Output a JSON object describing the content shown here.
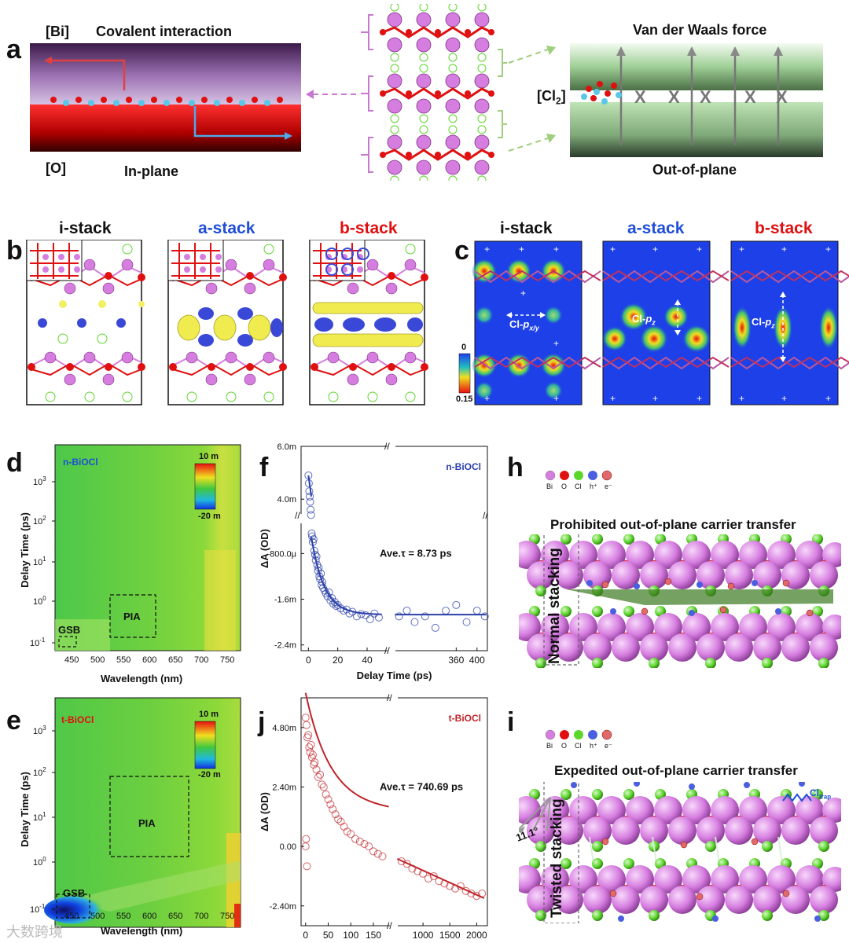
{
  "panel_labels": {
    "a": "a",
    "b": "b",
    "c": "c",
    "d": "d",
    "e": "e",
    "f": "f",
    "h": "h",
    "i": "i",
    "j": "j"
  },
  "panel_a": {
    "bi_label": "[Bi]",
    "covalent": "Covalent interaction",
    "o_label": "[O]",
    "in_plane": "In-plane",
    "vdw": "Van der Waals force",
    "cl2_label": "[Cl",
    "cl2_sub": "2",
    "cl2_close": "]",
    "out_of_plane": "Out-of-plane"
  },
  "panel_b": {
    "titles": [
      "i-stack",
      "a-stack",
      "b-stack"
    ]
  },
  "panel_c": {
    "titles": [
      "i-stack",
      "a-stack",
      "b-stack"
    ],
    "scale_top": "0",
    "scale_bottom": "0.15",
    "orbital_labels": [
      {
        "prefix": "Cl-",
        "italic": "p",
        "sub": "x/y"
      },
      {
        "prefix": "Cl-",
        "italic": "p",
        "sub": "z"
      },
      {
        "prefix": "Cl-",
        "italic": "p",
        "sub": "z"
      }
    ]
  },
  "panel_d": {
    "sample": "n-BiOCl",
    "ylabel": "Delay Time (ps)",
    "xlabel": "Wavelength (nm)",
    "xticks": [
      "450",
      "500",
      "550",
      "600",
      "650",
      "700",
      "750"
    ],
    "cbar_top": "10 m",
    "cbar_bottom": "-20 m",
    "gsb": "GSB",
    "pia": "PIA"
  },
  "panel_e": {
    "sample": "t-BiOCl",
    "ylabel": "Delay Time (ps)",
    "xlabel": "Wavelength (nm)",
    "xticks": [
      "450",
      "500",
      "550",
      "600",
      "650",
      "700",
      "750"
    ],
    "cbar_top": "10 m",
    "cbar_bottom": "-20 m",
    "gsb": "GSB",
    "pia": "PIA"
  },
  "panel_h": {
    "legend": [
      "Bi",
      "O",
      "Cl",
      "h⁺",
      "e⁻"
    ],
    "title": "Prohibited out-of-plane carrier transfer",
    "side": "Normal stacking"
  },
  "panel_i": {
    "legend": [
      "Bi",
      "O",
      "Cl",
      "h⁺",
      "e⁻"
    ],
    "title": "Expedited out-of-plane carrier transfer",
    "side": "Twisted stacking",
    "angle": "11.1°",
    "trap": "Cl",
    "trap_sub": "trap"
  },
  "colors": {
    "bi": "#d67ee0",
    "o": "#e01010",
    "cl": "#5dd62c",
    "hole": "#4a5ee0",
    "electron": "#e05050",
    "blue_fit": "#2a3fa8",
    "red_fit": "#c0242a",
    "c_bg": "#1e40e8"
  },
  "watermark": "大数跨境",
  "chart_data": [
    {
      "type": "scatter",
      "panel": "f",
      "title": "n-BiOCl",
      "annotation": "Ave.τ = 8.73 ps",
      "xlabel": "Delay Time (ps)",
      "ylabel": "ΔA (OD)",
      "segment1_xlim": [
        -5,
        55
      ],
      "segment2_xlim": [
        240,
        420
      ],
      "xticks": [
        "0",
        "20",
        "40",
        "360",
        "400"
      ],
      "xtick_values": [
        0,
        20,
        40,
        360,
        400
      ],
      "yticks_upper": [
        "6.0m",
        "4.0m"
      ],
      "yticks_lower": [
        "-800.0μ",
        "-1.6m",
        "-2.4m"
      ],
      "upper_ylim": [
        0.0035,
        0.006
      ],
      "lower_ylim": [
        -0.0025,
        -0.0003
      ],
      "fit": {
        "offset": -0.00187,
        "amplitude": 0.0068,
        "tau": 8.73,
        "peak": 0.0049
      },
      "points_early": [
        [
          0,
          0.0049
        ],
        [
          0.3,
          0.0046
        ],
        [
          0.6,
          0.0043
        ],
        [
          0.9,
          0.0041
        ],
        [
          1.2,
          0.0039
        ],
        [
          1.5,
          0.0036
        ],
        [
          1.8,
          0.0034
        ],
        [
          2.2,
          -0.00045
        ],
        [
          2.5,
          -0.0005
        ],
        [
          3,
          -0.0006
        ],
        [
          3.5,
          -0.00055
        ],
        [
          4,
          -0.00075
        ],
        [
          4.5,
          -0.00082
        ],
        [
          5,
          -0.00092
        ],
        [
          5.5,
          -0.00085
        ],
        [
          6,
          -0.001
        ],
        [
          6.5,
          -0.0011
        ],
        [
          7,
          -0.00105
        ],
        [
          7.5,
          -0.0012
        ],
        [
          8,
          -0.00125
        ],
        [
          8.5,
          -0.00115
        ],
        [
          9,
          -0.00135
        ],
        [
          9.5,
          -0.0013
        ],
        [
          10,
          -0.0014
        ],
        [
          11,
          -0.00145
        ],
        [
          12,
          -0.0015
        ],
        [
          13,
          -0.00155
        ],
        [
          14,
          -0.00148
        ],
        [
          15,
          -0.00162
        ],
        [
          16,
          -0.00158
        ],
        [
          17,
          -0.00168
        ],
        [
          18,
          -0.00165
        ],
        [
          19,
          -0.00172
        ],
        [
          20,
          -0.0017
        ],
        [
          22,
          -0.00176
        ],
        [
          24,
          -0.0018
        ],
        [
          26,
          -0.00178
        ],
        [
          28,
          -0.00185
        ],
        [
          30,
          -0.00182
        ],
        [
          33,
          -0.0019
        ],
        [
          36,
          -0.00186
        ],
        [
          39,
          -0.00188
        ],
        [
          42,
          -0.00195
        ],
        [
          45,
          -0.00185
        ],
        [
          48,
          -0.00192
        ]
      ],
      "points_late": [
        [
          250,
          -0.0019
        ],
        [
          265,
          -0.0018
        ],
        [
          280,
          -0.002
        ],
        [
          300,
          -0.0019
        ],
        [
          320,
          -0.0021
        ],
        [
          340,
          -0.0018
        ],
        [
          360,
          -0.0017
        ],
        [
          380,
          -0.002
        ],
        [
          400,
          -0.0018
        ],
        [
          415,
          -0.0019
        ]
      ]
    },
    {
      "type": "scatter",
      "panel": "j",
      "title": "t-BiOCl",
      "annotation": "Ave.τ = 740.69 ps",
      "xlabel": "Delay Time (ps)",
      "ylabel": "ΔA (OD)",
      "segment1_xlim": [
        -10,
        190
      ],
      "segment2_xlim": [
        500,
        2200
      ],
      "xticks": [
        "0",
        "50",
        "100",
        "150",
        "1000",
        "1500",
        "2000"
      ],
      "xtick_values": [
        0,
        50,
        100,
        150,
        1000,
        1500,
        2000
      ],
      "yticks": [
        "4.80m",
        "2.40m",
        "0.00",
        "-2.40m"
      ],
      "ytick_values": [
        0.0048,
        0.0024,
        0,
        -0.0024
      ],
      "ylim": [
        -0.0032,
        0.006
      ],
      "fit": {
        "a1": 0.0046,
        "tau1": 55,
        "a2": 0.0016,
        "tau2": 1800,
        "offset": -0.0033
      },
      "points_early": [
        [
          0,
          0.0052
        ],
        [
          2,
          0.0049
        ],
        [
          4,
          0.0044
        ],
        [
          6,
          0.0045
        ],
        [
          8,
          0.004
        ],
        [
          10,
          0.0038
        ],
        [
          12,
          0.0041
        ],
        [
          14,
          0.0036
        ],
        [
          16,
          0.0037
        ],
        [
          18,
          0.0033
        ],
        [
          20,
          0.0034
        ],
        [
          24,
          0.0031
        ],
        [
          28,
          0.0028
        ],
        [
          32,
          0.0029
        ],
        [
          36,
          0.0025
        ],
        [
          40,
          0.0024
        ],
        [
          45,
          0.0021
        ],
        [
          50,
          0.0019
        ],
        [
          55,
          0.0017
        ],
        [
          60,
          0.0015
        ],
        [
          66,
          0.0013
        ],
        [
          72,
          0.0011
        ],
        [
          78,
          0.001
        ],
        [
          85,
          0.0008
        ],
        [
          92,
          0.0006
        ],
        [
          100,
          0.0005
        ],
        [
          110,
          0.0003
        ],
        [
          120,
          0.0002
        ],
        [
          130,
          0.0001
        ],
        [
          140,
          0.0
        ],
        [
          150,
          -0.0002
        ],
        [
          160,
          -0.0003
        ],
        [
          170,
          -0.0004
        ],
        [
          0,
          0.0
        ],
        [
          1,
          0.0003
        ],
        [
          3,
          -0.0008
        ]
      ],
      "points_late": [
        [
          600,
          -0.0006
        ],
        [
          700,
          -0.0007
        ],
        [
          800,
          -0.0009
        ],
        [
          900,
          -0.001
        ],
        [
          1000,
          -0.0011
        ],
        [
          1100,
          -0.0013
        ],
        [
          1200,
          -0.0012
        ],
        [
          1300,
          -0.0014
        ],
        [
          1400,
          -0.0015
        ],
        [
          1500,
          -0.0016
        ],
        [
          1600,
          -0.0017
        ],
        [
          1700,
          -0.0016
        ],
        [
          1800,
          -0.0018
        ],
        [
          1900,
          -0.0019
        ],
        [
          2000,
          -0.002
        ],
        [
          2100,
          -0.0019
        ]
      ]
    }
  ]
}
